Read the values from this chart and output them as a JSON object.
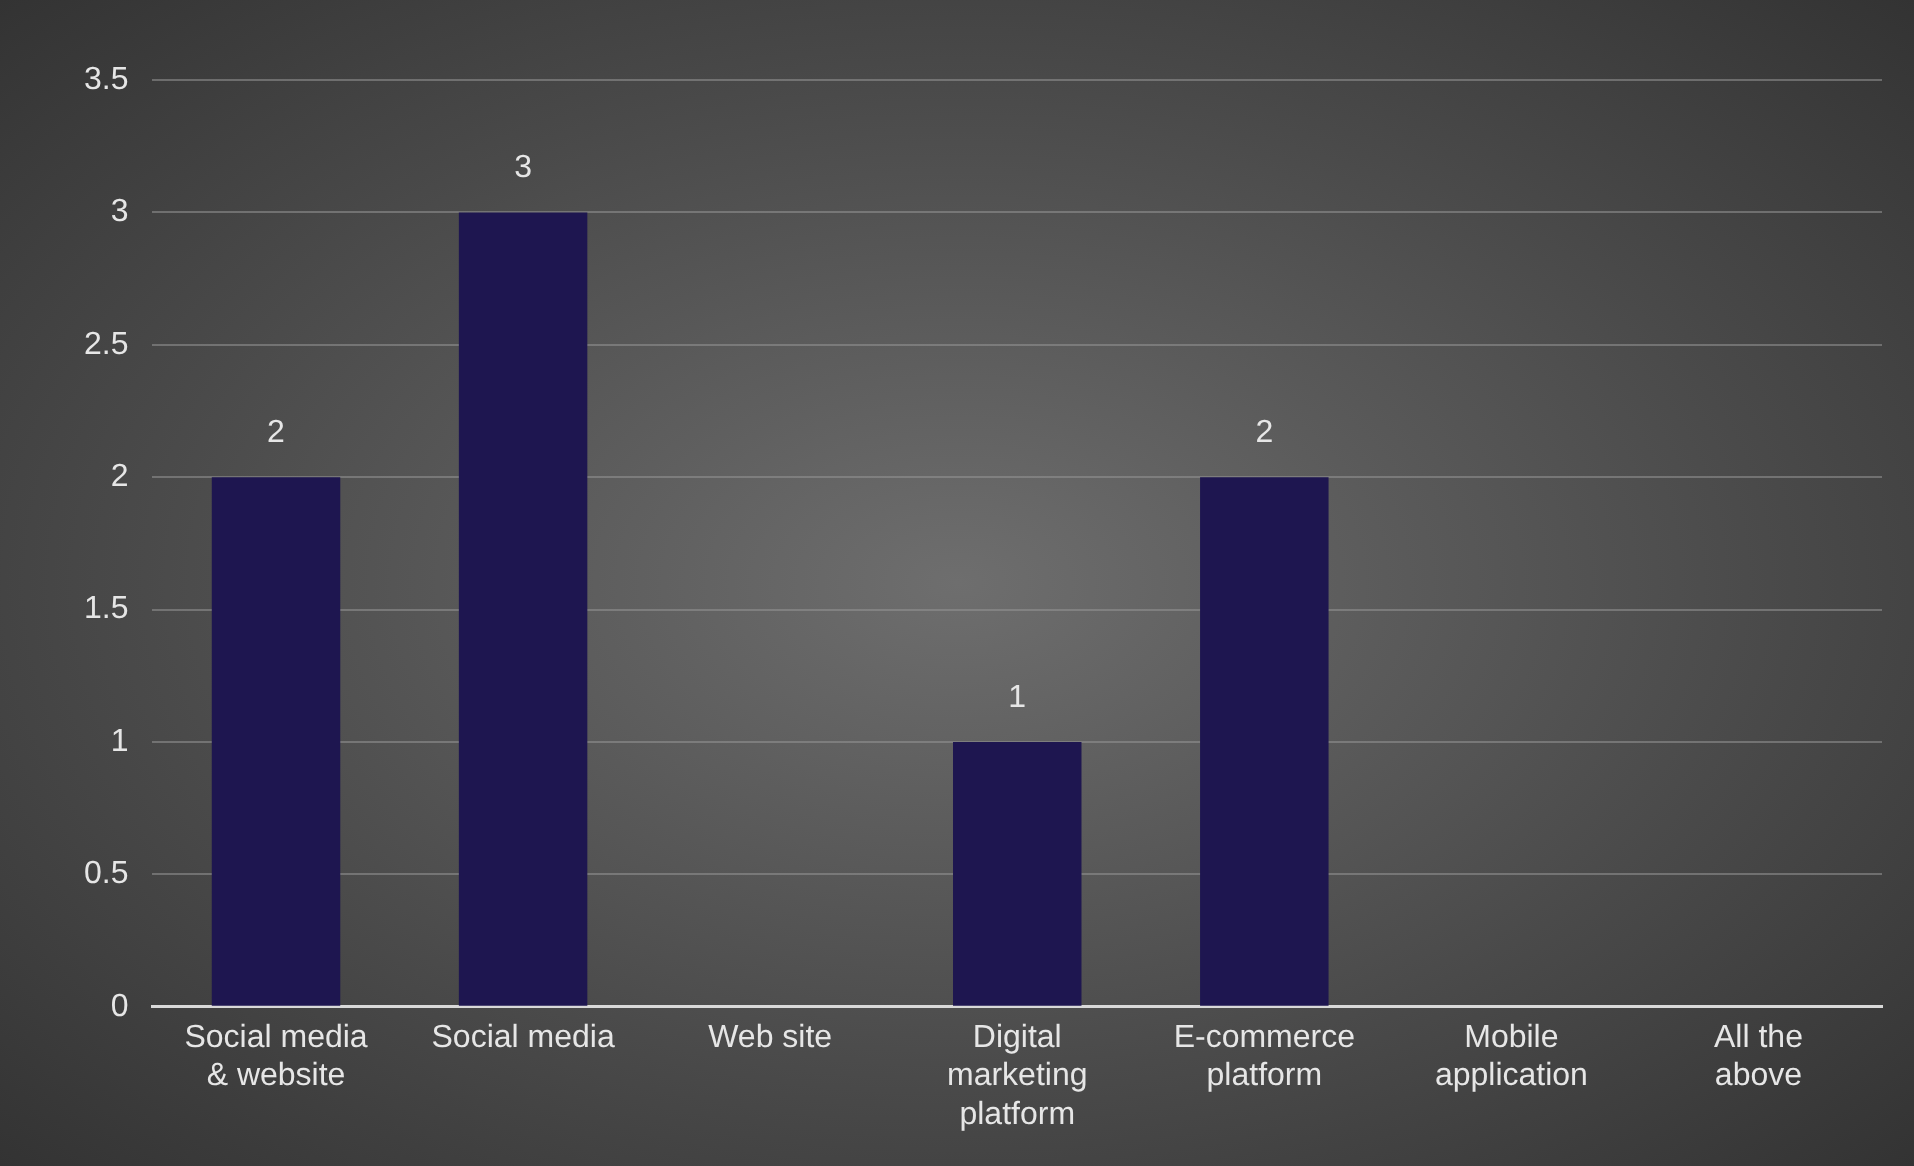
{
  "chart_data": {
    "type": "bar",
    "categories": [
      "Social media & website",
      "Social media",
      "Web site",
      "Digital marketing platform",
      "E-commerce platform",
      "Mobile application",
      "All the above"
    ],
    "values": [
      2,
      3,
      0,
      1,
      2,
      0,
      0
    ],
    "value_labels": [
      "2",
      "3",
      null,
      "1",
      "2",
      null,
      null
    ],
    "color": "#1e1650",
    "ylim": [
      0,
      3.5
    ],
    "yticks": [
      0,
      0.5,
      1,
      1.5,
      2,
      2.5,
      3,
      3.5
    ],
    "grid": "y",
    "legend": false
  }
}
